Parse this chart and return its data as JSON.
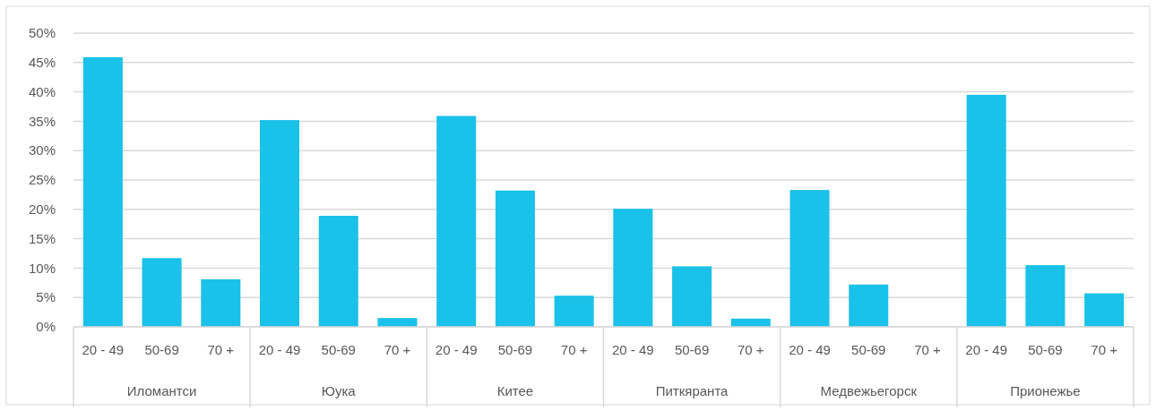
{
  "chart_data": {
    "type": "bar",
    "categories": [
      "20 - 49",
      "50-69",
      "70 +",
      "20 - 49",
      "50-69",
      "70 +",
      "20 - 49",
      "50-69",
      "70 +",
      "20 - 49",
      "50-69",
      "70 +",
      "20 - 49",
      "50-69",
      "70 +",
      "20 - 49",
      "50-69",
      "70 +"
    ],
    "values": [
      45.9,
      11.7,
      8.1,
      35.2,
      18.9,
      1.5,
      35.9,
      23.2,
      5.3,
      20.1,
      10.3,
      1.4,
      23.3,
      7.2,
      0,
      39.5,
      10.5,
      5.7
    ],
    "color": "#1ac1e8",
    "annotations": [
      "Иломантси",
      "Юука",
      "Китее",
      "Питкяранта",
      "Медвежьегорск",
      "Прионежье"
    ],
    "ylim": [
      0,
      50
    ],
    "yticks": [
      {
        "value": 0,
        "label": "0%"
      },
      {
        "value": 5,
        "label": "5%"
      },
      {
        "value": 10,
        "label": "10%"
      },
      {
        "value": 15,
        "label": "15%"
      },
      {
        "value": 20,
        "label": "20%"
      },
      {
        "value": 25,
        "label": "25%"
      },
      {
        "value": 30,
        "label": "30%"
      },
      {
        "value": 35,
        "label": "35%"
      },
      {
        "value": 40,
        "label": "40%"
      },
      {
        "value": 45,
        "label": "45%"
      },
      {
        "value": 50,
        "label": "50%"
      }
    ],
    "grid": "y"
  }
}
